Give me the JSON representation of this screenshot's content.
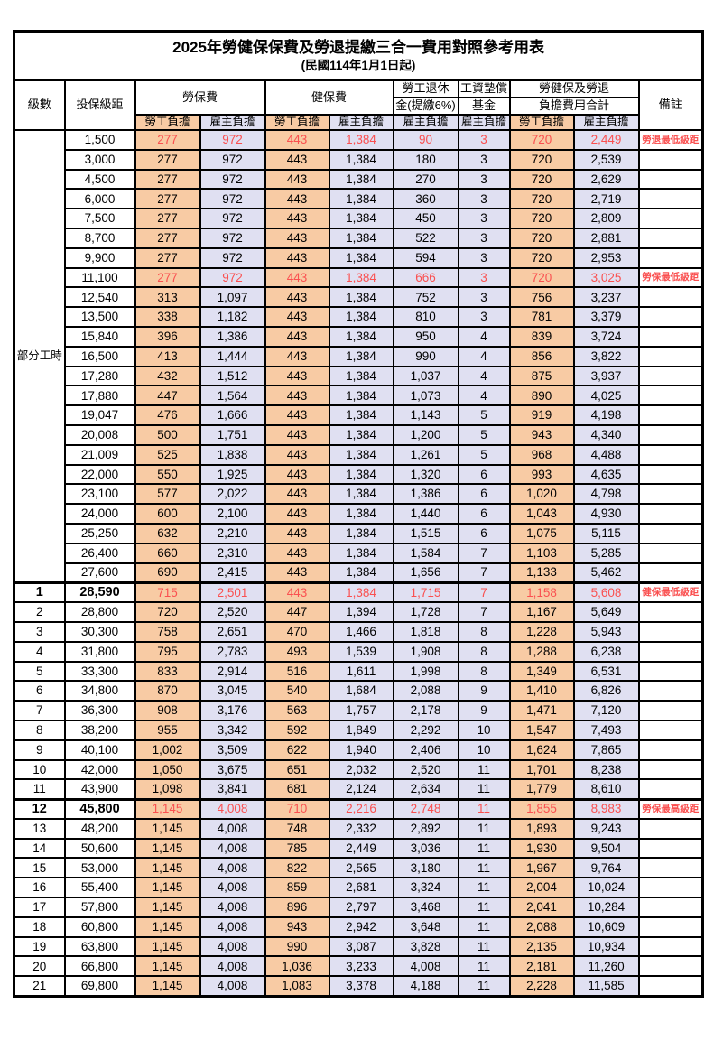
{
  "title": "2025年勞健保保費及勞退提繳三合一費用對照參考用表",
  "subtitle": "(民國114年1月1日起)",
  "colors": {
    "worker_bg": "#F8CBA4",
    "employer_bg": "#E0E0F2",
    "highlight_text": "#FA5050",
    "border": "#000000"
  },
  "header": {
    "level": "級數",
    "bracket": "投保級距",
    "labor_insurance": "勞保費",
    "health_insurance": "健保費",
    "pension_line1": "勞工退休",
    "pension_line2": "金(提繳6%)",
    "wage_fund_line1": "工資墊償",
    "wage_fund_line2": "基金",
    "total_line1": "勞健保及勞退",
    "total_line2": "負擔費用合計",
    "note": "備註",
    "worker_share": "勞工負擔",
    "employer_share": "雇主負擔"
  },
  "partial_time": {
    "label": "部分工時",
    "row_count": 23
  },
  "rows": [
    {
      "level": "",
      "bracket": "1,500",
      "values": [
        "277",
        "972",
        "443",
        "1,384",
        "90",
        "3",
        "720",
        "2,449"
      ],
      "note": "勞退最低級距",
      "hl": true
    },
    {
      "level": "",
      "bracket": "3,000",
      "values": [
        "277",
        "972",
        "443",
        "1,384",
        "180",
        "3",
        "720",
        "2,539"
      ],
      "note": ""
    },
    {
      "level": "",
      "bracket": "4,500",
      "values": [
        "277",
        "972",
        "443",
        "1,384",
        "270",
        "3",
        "720",
        "2,629"
      ],
      "note": ""
    },
    {
      "level": "",
      "bracket": "6,000",
      "values": [
        "277",
        "972",
        "443",
        "1,384",
        "360",
        "3",
        "720",
        "2,719"
      ],
      "note": ""
    },
    {
      "level": "",
      "bracket": "7,500",
      "values": [
        "277",
        "972",
        "443",
        "1,384",
        "450",
        "3",
        "720",
        "2,809"
      ],
      "note": ""
    },
    {
      "level": "",
      "bracket": "8,700",
      "values": [
        "277",
        "972",
        "443",
        "1,384",
        "522",
        "3",
        "720",
        "2,881"
      ],
      "note": ""
    },
    {
      "level": "",
      "bracket": "9,900",
      "values": [
        "277",
        "972",
        "443",
        "1,384",
        "594",
        "3",
        "720",
        "2,953"
      ],
      "note": ""
    },
    {
      "level": "",
      "bracket": "11,100",
      "values": [
        "277",
        "972",
        "443",
        "1,384",
        "666",
        "3",
        "720",
        "3,025"
      ],
      "note": "勞保最低級距",
      "hl": true
    },
    {
      "level": "",
      "bracket": "12,540",
      "values": [
        "313",
        "1,097",
        "443",
        "1,384",
        "752",
        "3",
        "756",
        "3,237"
      ],
      "note": ""
    },
    {
      "level": "",
      "bracket": "13,500",
      "values": [
        "338",
        "1,182",
        "443",
        "1,384",
        "810",
        "3",
        "781",
        "3,379"
      ],
      "note": ""
    },
    {
      "level": "",
      "bracket": "15,840",
      "values": [
        "396",
        "1,386",
        "443",
        "1,384",
        "950",
        "4",
        "839",
        "3,724"
      ],
      "note": ""
    },
    {
      "level": "",
      "bracket": "16,500",
      "values": [
        "413",
        "1,444",
        "443",
        "1,384",
        "990",
        "4",
        "856",
        "3,822"
      ],
      "note": ""
    },
    {
      "level": "",
      "bracket": "17,280",
      "values": [
        "432",
        "1,512",
        "443",
        "1,384",
        "1,037",
        "4",
        "875",
        "3,937"
      ],
      "note": ""
    },
    {
      "level": "",
      "bracket": "17,880",
      "values": [
        "447",
        "1,564",
        "443",
        "1,384",
        "1,073",
        "4",
        "890",
        "4,025"
      ],
      "note": ""
    },
    {
      "level": "",
      "bracket": "19,047",
      "values": [
        "476",
        "1,666",
        "443",
        "1,384",
        "1,143",
        "5",
        "919",
        "4,198"
      ],
      "note": ""
    },
    {
      "level": "",
      "bracket": "20,008",
      "values": [
        "500",
        "1,751",
        "443",
        "1,384",
        "1,200",
        "5",
        "943",
        "4,340"
      ],
      "note": ""
    },
    {
      "level": "",
      "bracket": "21,009",
      "values": [
        "525",
        "1,838",
        "443",
        "1,384",
        "1,261",
        "5",
        "968",
        "4,488"
      ],
      "note": ""
    },
    {
      "level": "",
      "bracket": "22,000",
      "values": [
        "550",
        "1,925",
        "443",
        "1,384",
        "1,320",
        "6",
        "993",
        "4,635"
      ],
      "note": ""
    },
    {
      "level": "",
      "bracket": "23,100",
      "values": [
        "577",
        "2,022",
        "443",
        "1,384",
        "1,386",
        "6",
        "1,020",
        "4,798"
      ],
      "note": ""
    },
    {
      "level": "",
      "bracket": "24,000",
      "values": [
        "600",
        "2,100",
        "443",
        "1,384",
        "1,440",
        "6",
        "1,043",
        "4,930"
      ],
      "note": ""
    },
    {
      "level": "",
      "bracket": "25,250",
      "values": [
        "632",
        "2,210",
        "443",
        "1,384",
        "1,515",
        "6",
        "1,075",
        "5,115"
      ],
      "note": ""
    },
    {
      "level": "",
      "bracket": "26,400",
      "values": [
        "660",
        "2,310",
        "443",
        "1,384",
        "1,584",
        "7",
        "1,103",
        "5,285"
      ],
      "note": ""
    },
    {
      "level": "",
      "bracket": "27,600",
      "values": [
        "690",
        "2,415",
        "443",
        "1,384",
        "1,656",
        "7",
        "1,133",
        "5,462"
      ],
      "note": ""
    },
    {
      "level": "1",
      "bracket": "28,590",
      "values": [
        "715",
        "2,501",
        "443",
        "1,384",
        "1,715",
        "7",
        "1,158",
        "5,608"
      ],
      "note": "健保最低級距",
      "hl": true,
      "emph": true,
      "thick_top": true
    },
    {
      "level": "2",
      "bracket": "28,800",
      "values": [
        "720",
        "2,520",
        "447",
        "1,394",
        "1,728",
        "7",
        "1,167",
        "5,649"
      ],
      "note": ""
    },
    {
      "level": "3",
      "bracket": "30,300",
      "values": [
        "758",
        "2,651",
        "470",
        "1,466",
        "1,818",
        "8",
        "1,228",
        "5,943"
      ],
      "note": ""
    },
    {
      "level": "4",
      "bracket": "31,800",
      "values": [
        "795",
        "2,783",
        "493",
        "1,539",
        "1,908",
        "8",
        "1,288",
        "6,238"
      ],
      "note": ""
    },
    {
      "level": "5",
      "bracket": "33,300",
      "values": [
        "833",
        "2,914",
        "516",
        "1,611",
        "1,998",
        "8",
        "1,349",
        "6,531"
      ],
      "note": ""
    },
    {
      "level": "6",
      "bracket": "34,800",
      "values": [
        "870",
        "3,045",
        "540",
        "1,684",
        "2,088",
        "9",
        "1,410",
        "6,826"
      ],
      "note": ""
    },
    {
      "level": "7",
      "bracket": "36,300",
      "values": [
        "908",
        "3,176",
        "563",
        "1,757",
        "2,178",
        "9",
        "1,471",
        "7,120"
      ],
      "note": ""
    },
    {
      "level": "8",
      "bracket": "38,200",
      "values": [
        "955",
        "3,342",
        "592",
        "1,849",
        "2,292",
        "10",
        "1,547",
        "7,493"
      ],
      "note": ""
    },
    {
      "level": "9",
      "bracket": "40,100",
      "values": [
        "1,002",
        "3,509",
        "622",
        "1,940",
        "2,406",
        "10",
        "1,624",
        "7,865"
      ],
      "note": ""
    },
    {
      "level": "10",
      "bracket": "42,000",
      "values": [
        "1,050",
        "3,675",
        "651",
        "2,032",
        "2,520",
        "11",
        "1,701",
        "8,238"
      ],
      "note": ""
    },
    {
      "level": "11",
      "bracket": "43,900",
      "values": [
        "1,098",
        "3,841",
        "681",
        "2,124",
        "2,634",
        "11",
        "1,779",
        "8,610"
      ],
      "note": ""
    },
    {
      "level": "12",
      "bracket": "45,800",
      "values": [
        "1,145",
        "4,008",
        "710",
        "2,216",
        "2,748",
        "11",
        "1,855",
        "8,983"
      ],
      "note": "勞保最高級距",
      "hl": true,
      "emph": true,
      "thick_top": true
    },
    {
      "level": "13",
      "bracket": "48,200",
      "values": [
        "1,145",
        "4,008",
        "748",
        "2,332",
        "2,892",
        "11",
        "1,893",
        "9,243"
      ],
      "note": ""
    },
    {
      "level": "14",
      "bracket": "50,600",
      "values": [
        "1,145",
        "4,008",
        "785",
        "2,449",
        "3,036",
        "11",
        "1,930",
        "9,504"
      ],
      "note": ""
    },
    {
      "level": "15",
      "bracket": "53,000",
      "values": [
        "1,145",
        "4,008",
        "822",
        "2,565",
        "3,180",
        "11",
        "1,967",
        "9,764"
      ],
      "note": ""
    },
    {
      "level": "16",
      "bracket": "55,400",
      "values": [
        "1,145",
        "4,008",
        "859",
        "2,681",
        "3,324",
        "11",
        "2,004",
        "10,024"
      ],
      "note": ""
    },
    {
      "level": "17",
      "bracket": "57,800",
      "values": [
        "1,145",
        "4,008",
        "896",
        "2,797",
        "3,468",
        "11",
        "2,041",
        "10,284"
      ],
      "note": ""
    },
    {
      "level": "18",
      "bracket": "60,800",
      "values": [
        "1,145",
        "4,008",
        "943",
        "2,942",
        "3,648",
        "11",
        "2,088",
        "10,609"
      ],
      "note": ""
    },
    {
      "level": "19",
      "bracket": "63,800",
      "values": [
        "1,145",
        "4,008",
        "990",
        "3,087",
        "3,828",
        "11",
        "2,135",
        "10,934"
      ],
      "note": ""
    },
    {
      "level": "20",
      "bracket": "66,800",
      "values": [
        "1,145",
        "4,008",
        "1,036",
        "3,233",
        "4,008",
        "11",
        "2,181",
        "11,260"
      ],
      "note": ""
    },
    {
      "level": "21",
      "bracket": "69,800",
      "values": [
        "1,145",
        "4,008",
        "1,083",
        "3,378",
        "4,188",
        "11",
        "2,228",
        "11,585"
      ],
      "note": ""
    }
  ]
}
